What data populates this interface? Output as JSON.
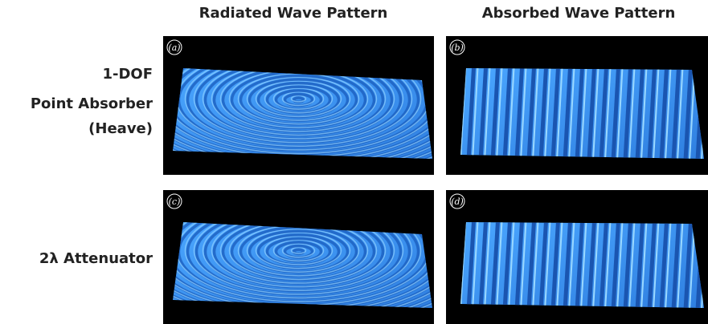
{
  "columns": [
    "Radiated Wave Pattern",
    "Absorbed Wave Pattern"
  ],
  "rows": [
    {
      "lines": [
        "1-DOF",
        "Point Absorber",
        "(Heave)"
      ]
    },
    {
      "lines": [
        "2λ Attenuator"
      ]
    }
  ],
  "panels": [
    {
      "label": "(a)"
    },
    {
      "label": "(b)"
    },
    {
      "label": "(c)"
    },
    {
      "label": "(d)"
    }
  ]
}
